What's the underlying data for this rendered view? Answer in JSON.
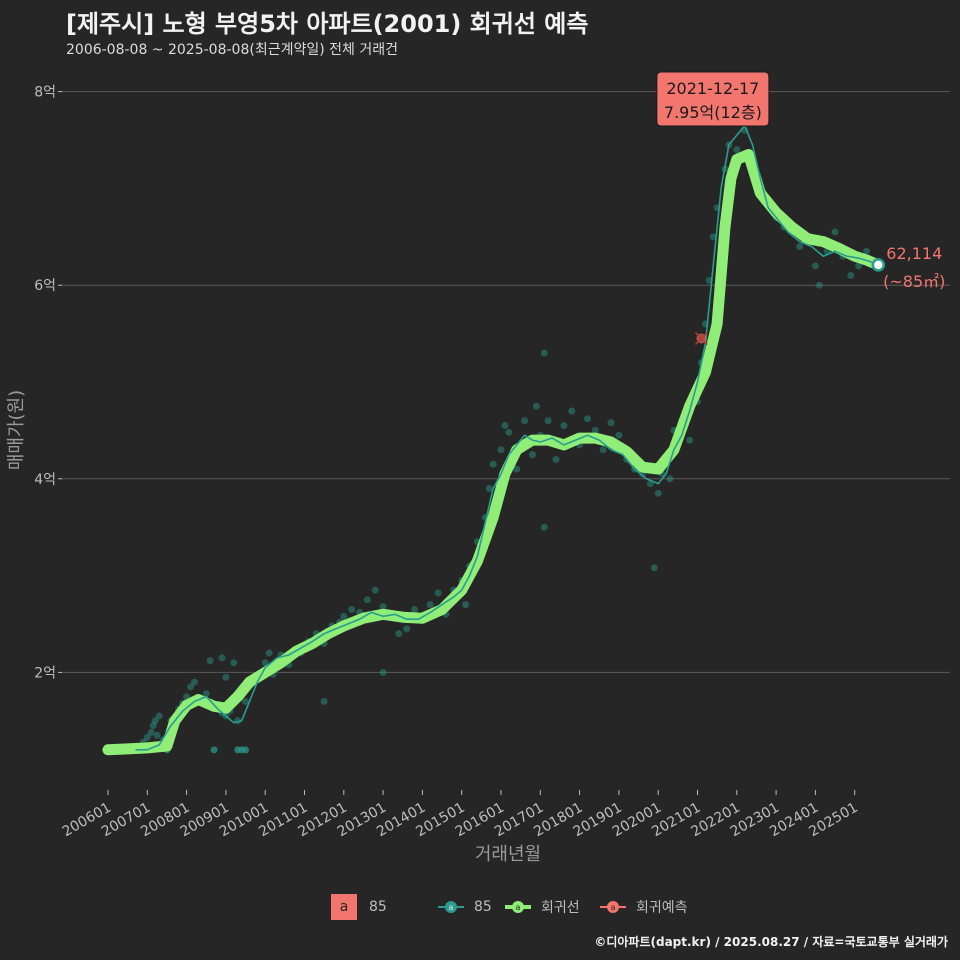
{
  "title": "[제주시] 노형 부영5차 아파트(2001) 회귀선 예측",
  "subtitle": "2006-08-08 ~ 2025-08-08(최근계약일) 전체 거래건",
  "footer": "©디아파트(dapt.kr) / 2025.08.27 / 자료=국토교통부 실거래가",
  "legend": {
    "text_key": "a",
    "text_label": "85",
    "series_label": "85",
    "regression_label": "회귀선",
    "prediction_label": "회귀예측"
  },
  "colors": {
    "background": "#262626",
    "trade": "#2a9d8f",
    "regression": "#90ee78",
    "prediction": "#f2766e",
    "grid": "#5a5a5a"
  },
  "chart_data": {
    "type": "line",
    "xlabel": "거래년월",
    "ylabel": "매매가(원)",
    "x_range": [
      2006.0,
      2025.9
    ],
    "y_range": [
      0.9,
      8.2
    ],
    "y_unit": "억",
    "y_ticks": [
      {
        "value": 2,
        "label": "2억"
      },
      {
        "value": 4,
        "label": "4억"
      },
      {
        "value": 6,
        "label": "6억"
      },
      {
        "value": 8,
        "label": "8억"
      }
    ],
    "x_ticks": [
      {
        "value": 2006.0,
        "label": "200601"
      },
      {
        "value": 2007.0,
        "label": "200701"
      },
      {
        "value": 2008.0,
        "label": "200801"
      },
      {
        "value": 2009.0,
        "label": "200901"
      },
      {
        "value": 2010.0,
        "label": "201001"
      },
      {
        "value": 2011.0,
        "label": "201101"
      },
      {
        "value": 2012.0,
        "label": "201201"
      },
      {
        "value": 2013.0,
        "label": "201301"
      },
      {
        "value": 2014.0,
        "label": "201401"
      },
      {
        "value": 2015.0,
        "label": "201501"
      },
      {
        "value": 2016.0,
        "label": "201601"
      },
      {
        "value": 2017.0,
        "label": "201701"
      },
      {
        "value": 2018.0,
        "label": "201801"
      },
      {
        "value": 2019.0,
        "label": "201901"
      },
      {
        "value": 2020.0,
        "label": "202001"
      },
      {
        "value": 2021.0,
        "label": "202101"
      },
      {
        "value": 2022.0,
        "label": "202201"
      },
      {
        "value": 2023.0,
        "label": "202301"
      },
      {
        "value": 2024.0,
        "label": "202401"
      },
      {
        "value": 2025.0,
        "label": "202501"
      }
    ],
    "series": [
      {
        "name": "85",
        "kind": "trade-line",
        "points": [
          [
            2006.7,
            1.2
          ],
          [
            2007.0,
            1.2
          ],
          [
            2007.3,
            1.25
          ],
          [
            2007.6,
            1.45
          ],
          [
            2007.9,
            1.6
          ],
          [
            2008.2,
            1.7
          ],
          [
            2008.5,
            1.75
          ],
          [
            2008.8,
            1.62
          ],
          [
            2009.0,
            1.55
          ],
          [
            2009.2,
            1.48
          ],
          [
            2009.4,
            1.5
          ],
          [
            2009.6,
            1.7
          ],
          [
            2009.8,
            1.9
          ],
          [
            2010.0,
            2.05
          ],
          [
            2010.3,
            2.15
          ],
          [
            2010.6,
            2.18
          ],
          [
            2010.9,
            2.25
          ],
          [
            2011.2,
            2.32
          ],
          [
            2011.5,
            2.4
          ],
          [
            2011.8,
            2.45
          ],
          [
            2012.1,
            2.5
          ],
          [
            2012.4,
            2.55
          ],
          [
            2012.7,
            2.62
          ],
          [
            2013.0,
            2.58
          ],
          [
            2013.3,
            2.6
          ],
          [
            2013.6,
            2.55
          ],
          [
            2013.9,
            2.55
          ],
          [
            2014.2,
            2.62
          ],
          [
            2014.5,
            2.7
          ],
          [
            2014.8,
            2.78
          ],
          [
            2015.0,
            2.85
          ],
          [
            2015.2,
            3.0
          ],
          [
            2015.4,
            3.2
          ],
          [
            2015.6,
            3.55
          ],
          [
            2015.8,
            3.9
          ],
          [
            2016.0,
            4.05
          ],
          [
            2016.2,
            4.25
          ],
          [
            2016.4,
            4.35
          ],
          [
            2016.6,
            4.45
          ],
          [
            2016.8,
            4.4
          ],
          [
            2017.0,
            4.38
          ],
          [
            2017.3,
            4.42
          ],
          [
            2017.6,
            4.35
          ],
          [
            2017.9,
            4.4
          ],
          [
            2018.2,
            4.45
          ],
          [
            2018.5,
            4.4
          ],
          [
            2018.8,
            4.3
          ],
          [
            2019.1,
            4.25
          ],
          [
            2019.4,
            4.1
          ],
          [
            2019.7,
            4.0
          ],
          [
            2020.0,
            3.95
          ],
          [
            2020.2,
            4.05
          ],
          [
            2020.4,
            4.3
          ],
          [
            2020.6,
            4.45
          ],
          [
            2020.8,
            4.7
          ],
          [
            2021.0,
            5.0
          ],
          [
            2021.2,
            5.4
          ],
          [
            2021.4,
            6.2
          ],
          [
            2021.6,
            7.0
          ],
          [
            2021.8,
            7.45
          ],
          [
            2022.0,
            7.55
          ],
          [
            2022.2,
            7.65
          ],
          [
            2022.4,
            7.45
          ],
          [
            2022.6,
            7.1
          ],
          [
            2022.8,
            6.8
          ],
          [
            2023.0,
            6.7
          ],
          [
            2023.3,
            6.55
          ],
          [
            2023.6,
            6.45
          ],
          [
            2023.9,
            6.4
          ],
          [
            2024.2,
            6.3
          ],
          [
            2024.5,
            6.35
          ],
          [
            2024.8,
            6.3
          ],
          [
            2025.1,
            6.28
          ],
          [
            2025.35,
            6.25
          ],
          [
            2025.6,
            6.21
          ]
        ]
      },
      {
        "name": "회귀선",
        "kind": "regression",
        "points": [
          [
            2006.0,
            1.2
          ],
          [
            2006.5,
            1.21
          ],
          [
            2007.0,
            1.22
          ],
          [
            2007.5,
            1.24
          ],
          [
            2007.7,
            1.5
          ],
          [
            2008.0,
            1.66
          ],
          [
            2008.3,
            1.72
          ],
          [
            2008.7,
            1.65
          ],
          [
            2009.0,
            1.63
          ],
          [
            2009.3,
            1.75
          ],
          [
            2009.6,
            1.9
          ],
          [
            2010.0,
            2.0
          ],
          [
            2010.4,
            2.1
          ],
          [
            2010.8,
            2.22
          ],
          [
            2011.2,
            2.3
          ],
          [
            2011.6,
            2.4
          ],
          [
            2012.0,
            2.48
          ],
          [
            2012.5,
            2.56
          ],
          [
            2013.0,
            2.6
          ],
          [
            2013.5,
            2.57
          ],
          [
            2014.0,
            2.56
          ],
          [
            2014.5,
            2.65
          ],
          [
            2015.0,
            2.85
          ],
          [
            2015.4,
            3.15
          ],
          [
            2015.8,
            3.6
          ],
          [
            2016.1,
            4.05
          ],
          [
            2016.4,
            4.3
          ],
          [
            2016.8,
            4.4
          ],
          [
            2017.2,
            4.4
          ],
          [
            2017.6,
            4.35
          ],
          [
            2018.0,
            4.42
          ],
          [
            2018.4,
            4.42
          ],
          [
            2018.8,
            4.38
          ],
          [
            2019.2,
            4.28
          ],
          [
            2019.6,
            4.12
          ],
          [
            2020.0,
            4.1
          ],
          [
            2020.4,
            4.3
          ],
          [
            2020.8,
            4.75
          ],
          [
            2021.2,
            5.1
          ],
          [
            2021.5,
            5.6
          ],
          [
            2021.7,
            6.6
          ],
          [
            2021.85,
            7.1
          ],
          [
            2022.0,
            7.3
          ],
          [
            2022.3,
            7.35
          ],
          [
            2022.6,
            6.95
          ],
          [
            2023.0,
            6.75
          ],
          [
            2023.4,
            6.6
          ],
          [
            2023.8,
            6.48
          ],
          [
            2024.2,
            6.45
          ],
          [
            2024.6,
            6.38
          ],
          [
            2025.0,
            6.3
          ],
          [
            2025.3,
            6.26
          ],
          [
            2025.6,
            6.21
          ]
        ]
      },
      {
        "name": "회귀예측",
        "kind": "prediction",
        "points": [
          [
            2021.1,
            5.45
          ]
        ]
      }
    ],
    "scatter": [
      [
        2006.8,
        1.22
      ],
      [
        2006.9,
        1.28
      ],
      [
        2007.0,
        1.33
      ],
      [
        2007.1,
        1.38
      ],
      [
        2007.15,
        1.45
      ],
      [
        2007.2,
        1.5
      ],
      [
        2007.25,
        1.35
      ],
      [
        2007.3,
        1.55
      ],
      [
        2007.4,
        1.3
      ],
      [
        2007.6,
        1.5
      ],
      [
        2007.8,
        1.62
      ],
      [
        2007.9,
        1.68
      ],
      [
        2008.0,
        1.75
      ],
      [
        2008.1,
        1.85
      ],
      [
        2008.2,
        1.9
      ],
      [
        2008.3,
        1.72
      ],
      [
        2008.5,
        1.78
      ],
      [
        2008.8,
        1.65
      ],
      [
        2008.9,
        1.58
      ],
      [
        2009.0,
        1.55
      ],
      [
        2009.1,
        1.6
      ],
      [
        2009.3,
        1.5
      ],
      [
        2008.6,
        2.12
      ],
      [
        2008.9,
        2.15
      ],
      [
        2009.2,
        2.1
      ],
      [
        2009.0,
        1.95
      ],
      [
        2009.5,
        1.7
      ],
      [
        2009.8,
        1.95
      ],
      [
        2010.0,
        2.1
      ],
      [
        2010.1,
        2.2
      ],
      [
        2010.2,
        1.98
      ],
      [
        2010.4,
        2.18
      ],
      [
        2010.6,
        2.08
      ],
      [
        2010.9,
        2.2
      ],
      [
        2011.1,
        2.32
      ],
      [
        2011.3,
        2.4
      ],
      [
        2011.5,
        2.3
      ],
      [
        2011.7,
        2.48
      ],
      [
        2011.9,
        2.52
      ],
      [
        2012.0,
        2.58
      ],
      [
        2012.2,
        2.65
      ],
      [
        2012.4,
        2.62
      ],
      [
        2012.6,
        2.75
      ],
      [
        2012.8,
        2.85
      ],
      [
        2013.0,
        2.68
      ],
      [
        2013.2,
        2.58
      ],
      [
        2013.4,
        2.4
      ],
      [
        2013.6,
        2.45
      ],
      [
        2013.8,
        2.65
      ],
      [
        2014.0,
        2.55
      ],
      [
        2014.2,
        2.7
      ],
      [
        2014.4,
        2.82
      ],
      [
        2014.6,
        2.6
      ],
      [
        2014.8,
        2.85
      ],
      [
        2015.0,
        2.95
      ],
      [
        2015.1,
        2.7
      ],
      [
        2015.2,
        3.1
      ],
      [
        2015.4,
        3.35
      ],
      [
        2015.6,
        3.6
      ],
      [
        2015.7,
        3.9
      ],
      [
        2015.8,
        4.15
      ],
      [
        2016.0,
        4.3
      ],
      [
        2016.1,
        4.55
      ],
      [
        2016.2,
        4.48
      ],
      [
        2016.4,
        4.1
      ],
      [
        2016.6,
        4.6
      ],
      [
        2016.8,
        4.25
      ],
      [
        2016.9,
        4.75
      ],
      [
        2017.0,
        4.45
      ],
      [
        2017.1,
        5.3
      ],
      [
        2017.2,
        4.6
      ],
      [
        2017.4,
        4.2
      ],
      [
        2017.6,
        4.55
      ],
      [
        2017.8,
        4.7
      ],
      [
        2018.0,
        4.35
      ],
      [
        2018.2,
        4.62
      ],
      [
        2018.4,
        4.5
      ],
      [
        2018.6,
        4.3
      ],
      [
        2018.8,
        4.58
      ],
      [
        2019.0,
        4.45
      ],
      [
        2019.2,
        4.2
      ],
      [
        2019.4,
        4.1
      ],
      [
        2019.6,
        4.05
      ],
      [
        2019.8,
        3.95
      ],
      [
        2020.0,
        3.85
      ],
      [
        2020.1,
        4.05
      ],
      [
        2020.2,
        4.2
      ],
      [
        2020.3,
        4.0
      ],
      [
        2020.4,
        4.5
      ],
      [
        2020.5,
        4.35
      ],
      [
        2020.6,
        4.6
      ],
      [
        2020.8,
        4.4
      ],
      [
        2021.0,
        4.8
      ],
      [
        2021.1,
        5.2
      ],
      [
        2021.2,
        5.6
      ],
      [
        2021.3,
        6.05
      ],
      [
        2021.4,
        6.5
      ],
      [
        2021.5,
        6.8
      ],
      [
        2021.7,
        7.2
      ],
      [
        2021.8,
        7.45
      ],
      [
        2021.9,
        7.95
      ],
      [
        2022.0,
        7.4
      ],
      [
        2022.2,
        7.6
      ],
      [
        2022.4,
        7.3
      ],
      [
        2022.6,
        7.0
      ],
      [
        2022.8,
        6.85
      ],
      [
        2023.0,
        6.7
      ],
      [
        2023.2,
        6.6
      ],
      [
        2023.4,
        6.55
      ],
      [
        2023.6,
        6.4
      ],
      [
        2023.8,
        6.45
      ],
      [
        2024.0,
        6.2
      ],
      [
        2024.1,
        6.0
      ],
      [
        2024.3,
        6.35
      ],
      [
        2024.5,
        6.55
      ],
      [
        2024.7,
        6.3
      ],
      [
        2024.9,
        6.1
      ],
      [
        2025.1,
        6.2
      ],
      [
        2025.3,
        6.35
      ],
      [
        2025.5,
        6.22
      ],
      [
        2019.9,
        3.08
      ],
      [
        2017.1,
        3.5
      ],
      [
        2013.0,
        2.0
      ],
      [
        2011.5,
        1.7
      ]
    ],
    "scatter_horizontal": [
      [
        2007.0,
        1.2
      ],
      [
        2007.5,
        1.2
      ],
      [
        2008.7,
        1.2
      ],
      [
        2009.3,
        1.2
      ],
      [
        2009.4,
        1.2
      ],
      [
        2009.5,
        1.2
      ]
    ],
    "max_annotation": {
      "x": 2021.9,
      "y": 7.95,
      "date": "2021-12-17",
      "value": "7.95억(12층)"
    },
    "last_annotation": {
      "x": 2025.6,
      "y": 6.21,
      "value": "62,114",
      "area": "(~85㎡)"
    }
  }
}
